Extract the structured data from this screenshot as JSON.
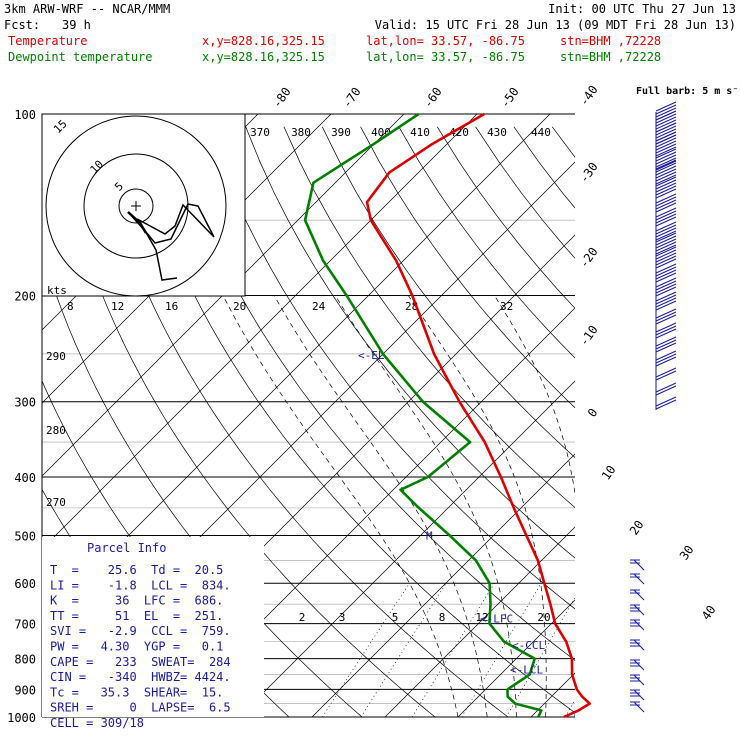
{
  "header": {
    "model": "3km ARW-WRF -- NCAR/MMM",
    "init": "Init: 00 UTC Thu 27 Jun 13",
    "fcst_label": "Fcst:",
    "fcst_hours": "39 h",
    "valid": "Valid: 15 UTC Fri 28 Jun 13 (09 MDT Fri 28 Jun 13)",
    "temp_label": "Temperature",
    "dew_label": "Dewpoint temperature",
    "xy": "x,y=828.16,325.15",
    "latlon": "lat,lon= 33.57, -86.75",
    "stn": "stn=BHM ,72228"
  },
  "colors": {
    "temperature": "#e00000",
    "dewpoint": "#008000",
    "annotation": "#1a1aa0",
    "grid": "#000000"
  },
  "chart_data": {
    "type": "line",
    "subtype": "skew-T log-P thermodynamic diagram",
    "y_axis": "pressure (hPa), log scale, decreasing upward",
    "pressure_levels": [
      "100",
      "200",
      "300",
      "400",
      "500",
      "600",
      "700",
      "800",
      "900",
      "1000"
    ],
    "ylim": [
      1000,
      100
    ],
    "isotherm_labels": [
      "-80",
      "-70",
      "-60",
      "-50",
      "-40",
      "-30",
      "-20",
      "-10",
      "0",
      "10",
      "20",
      "30",
      "40"
    ],
    "isentrope_labels": [
      "370",
      "380",
      "390",
      "400",
      "410",
      "420",
      "430",
      "440"
    ],
    "mixing_ratio_labels": [
      "2",
      "3",
      "5",
      "8",
      "12",
      "20"
    ],
    "left_theta_labels": [
      "290",
      "280",
      "270"
    ],
    "kts_label": "kts",
    "kts_values": [
      "8",
      "12",
      "16",
      "20",
      "24",
      "28",
      "32"
    ],
    "series": [
      {
        "name": "Temperature",
        "color": "#e00000",
        "points": [
          {
            "p": 1000,
            "t": 24.5
          },
          {
            "p": 975,
            "t": 25.6
          },
          {
            "p": 950,
            "t": 26.2
          },
          {
            "p": 925,
            "t": 24.2
          },
          {
            "p": 900,
            "t": 22.5
          },
          {
            "p": 850,
            "t": 19.8
          },
          {
            "p": 800,
            "t": 17.6
          },
          {
            "p": 750,
            "t": 14.5
          },
          {
            "p": 700,
            "t": 10.5
          },
          {
            "p": 650,
            "t": 7.2
          },
          {
            "p": 600,
            "t": 3.5
          },
          {
            "p": 550,
            "t": -0.5
          },
          {
            "p": 500,
            "t": -5.5
          },
          {
            "p": 450,
            "t": -11
          },
          {
            "p": 400,
            "t": -17
          },
          {
            "p": 350,
            "t": -24
          },
          {
            "p": 300,
            "t": -33
          },
          {
            "p": 250,
            "t": -43
          },
          {
            "p": 200,
            "t": -54
          },
          {
            "p": 175,
            "t": -61
          },
          {
            "p": 150,
            "t": -70
          },
          {
            "p": 140,
            "t": -73
          },
          {
            "p": 125,
            "t": -74
          },
          {
            "p": 112,
            "t": -72
          },
          {
            "p": 100,
            "t": -69
          }
        ]
      },
      {
        "name": "Dewpoint temperature",
        "color": "#008000",
        "points": [
          {
            "p": 1000,
            "t": 21.0
          },
          {
            "p": 975,
            "t": 20.5
          },
          {
            "p": 950,
            "t": 16.0
          },
          {
            "p": 925,
            "t": 14.0
          },
          {
            "p": 900,
            "t": 13.0
          },
          {
            "p": 850,
            "t": 14.0
          },
          {
            "p": 800,
            "t": 12.5
          },
          {
            "p": 750,
            "t": 6.0
          },
          {
            "p": 700,
            "t": 1.5
          },
          {
            "p": 650,
            "t": -1.0
          },
          {
            "p": 600,
            "t": -4.0
          },
          {
            "p": 550,
            "t": -9.0
          },
          {
            "p": 500,
            "t": -16.0
          },
          {
            "p": 450,
            "t": -24.0
          },
          {
            "p": 420,
            "t": -29.0
          },
          {
            "p": 400,
            "t": -27.0
          },
          {
            "p": 350,
            "t": -26.0
          },
          {
            "p": 300,
            "t": -38.0
          },
          {
            "p": 250,
            "t": -50.0
          },
          {
            "p": 200,
            "t": -63.0
          },
          {
            "p": 175,
            "t": -71.0
          },
          {
            "p": 150,
            "t": -79.0
          },
          {
            "p": 130,
            "t": -83.0
          },
          {
            "p": 112,
            "t": -80.0
          },
          {
            "p": 100,
            "t": -78.0
          }
        ]
      }
    ],
    "levels": [
      {
        "label": "<-EL",
        "p": 251
      },
      {
        "label": "M",
        "p": 500
      },
      {
        "label": "<-LFC",
        "p": 686
      },
      {
        "label": "<-CCL",
        "p": 759
      },
      {
        "label": "<-LCL",
        "p": 834
      }
    ],
    "wind_barb_legend": "Full barb: 5 m s⁻¹",
    "hodograph_rings": [
      "5",
      "10",
      "15"
    ]
  },
  "parcel_info": {
    "title": "Parcel Info",
    "rows": [
      "T  =    25.6  Td =  20.5",
      "LI =    -1.8  LCL =  834.",
      "K  =     36  LFC =  686.",
      "TT =     51  EL  =  251.",
      "SVI =   -2.9  CCL =  759.",
      "PW =   4.30  YGP =   0.1",
      "CAPE =   233  SWEAT=  284",
      "CIN =   -340  HWBZ= 4424.",
      "Tc =   35.3  SHEAR=  15.",
      "SREH =     0  LAPSE=  6.5",
      "CELL = 309/18"
    ]
  }
}
